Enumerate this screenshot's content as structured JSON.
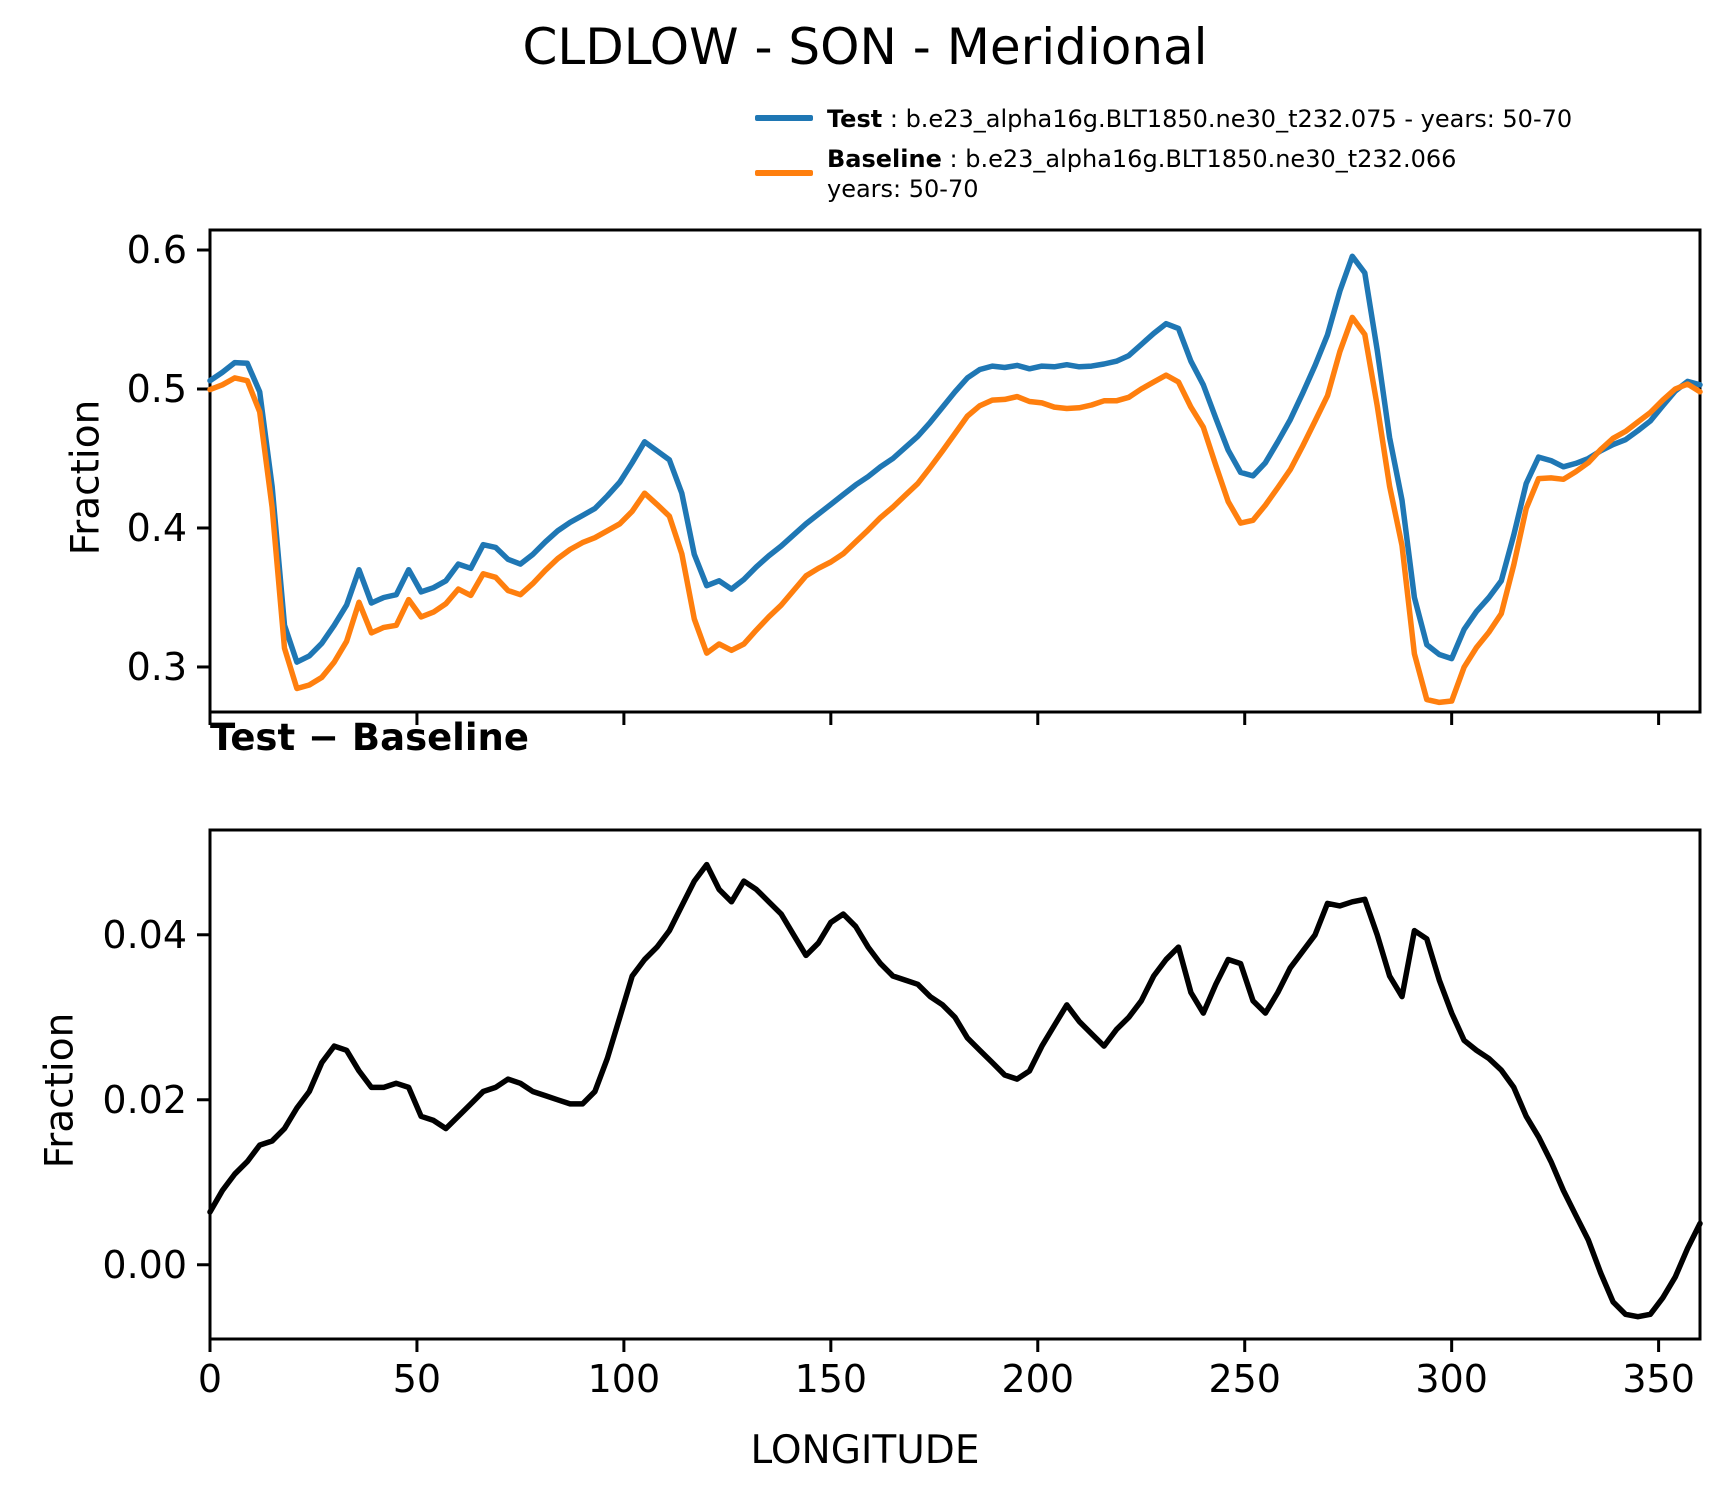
{
  "title": "CLDLOW - SON - Meridional",
  "legend": {
    "test_label": "Test",
    "test_desc": " : b.e23_alpha16g.BLT1850.ne30_t232.075 - years: 50-70",
    "baseline_label": "Baseline",
    "baseline_desc": " : b.e23_alpha16g.BLT1850.ne30_t232.066",
    "baseline_desc_line2": "years: 50-70"
  },
  "colors": {
    "test": "#1f77b4",
    "baseline": "#ff7f0e",
    "diff": "#000000",
    "axis": "#000000"
  },
  "chart_data": [
    {
      "type": "line",
      "title": "",
      "xlabel": "",
      "ylabel": "Fraction",
      "xlim": [
        0,
        360
      ],
      "ylim": [
        0.2676,
        0.6144
      ],
      "xticks": [
        0,
        50,
        100,
        150,
        200,
        250,
        300,
        350
      ],
      "xticklabels": [],
      "yticks": [
        0.3,
        0.4,
        0.5,
        0.6
      ],
      "yticklabels": [
        "0.3",
        "0.4",
        "0.5",
        "0.6"
      ],
      "grid": false,
      "legend_position": "top-right-above-axes",
      "x": [
        0,
        3,
        6,
        9,
        12,
        15,
        18,
        21,
        24,
        27,
        30,
        33,
        36,
        39,
        42,
        45,
        48,
        51,
        54,
        57,
        60,
        63,
        66,
        69,
        72,
        75,
        78,
        81,
        84,
        87,
        90,
        93,
        96,
        99,
        102,
        105,
        108,
        111,
        114,
        117,
        120,
        123,
        126,
        129,
        132,
        135,
        138,
        141,
        144,
        147,
        150,
        153,
        156,
        159,
        162,
        165,
        168,
        171,
        174,
        177,
        180,
        183,
        186,
        189,
        192,
        195,
        198,
        201,
        204,
        207,
        210,
        213,
        216,
        219,
        222,
        225,
        228,
        231,
        234,
        237,
        240,
        243,
        246,
        249,
        252,
        255,
        258,
        261,
        264,
        267,
        270,
        273,
        276,
        279,
        282,
        285,
        288,
        291,
        294,
        297,
        300,
        303,
        306,
        309,
        312,
        315,
        318,
        321,
        324,
        327,
        330,
        333,
        336,
        339,
        342,
        345,
        348,
        351,
        354,
        357,
        360
      ],
      "series": [
        {
          "name": "Test",
          "values": [
            0.506,
            0.512,
            0.519,
            0.5185,
            0.498,
            0.43,
            0.33,
            0.3035,
            0.308,
            0.317,
            0.33,
            0.3445,
            0.37,
            0.346,
            0.35,
            0.352,
            0.37,
            0.354,
            0.357,
            0.362,
            0.374,
            0.371,
            0.388,
            0.386,
            0.3775,
            0.374,
            0.381,
            0.39,
            0.398,
            0.404,
            0.409,
            0.414,
            0.423,
            0.433,
            0.447,
            0.462,
            0.4555,
            0.449,
            0.425,
            0.381,
            0.3585,
            0.362,
            0.356,
            0.363,
            0.372,
            0.38,
            0.387,
            0.395,
            0.403,
            0.41,
            0.417,
            0.424,
            0.431,
            0.437,
            0.444,
            0.45,
            0.458,
            0.466,
            0.476,
            0.487,
            0.498,
            0.508,
            0.514,
            0.5165,
            0.5155,
            0.517,
            0.5145,
            0.5165,
            0.516,
            0.5175,
            0.516,
            0.5165,
            0.518,
            0.52,
            0.524,
            0.532,
            0.54,
            0.547,
            0.5435,
            0.52,
            0.503,
            0.479,
            0.456,
            0.44,
            0.4375,
            0.447,
            0.462,
            0.478,
            0.497,
            0.517,
            0.539,
            0.5705,
            0.5955,
            0.5835,
            0.528,
            0.465,
            0.42,
            0.35,
            0.316,
            0.309,
            0.306,
            0.327,
            0.34,
            0.35,
            0.362,
            0.395,
            0.432,
            0.451,
            0.4485,
            0.444,
            0.4465,
            0.45,
            0.4555,
            0.46,
            0.4635,
            0.47,
            0.477,
            0.488,
            0.4985,
            0.5055,
            0.503
          ]
        },
        {
          "name": "Baseline",
          "values": [
            0.4996,
            0.503,
            0.508,
            0.506,
            0.4835,
            0.415,
            0.3135,
            0.2845,
            0.287,
            0.2925,
            0.3035,
            0.3185,
            0.3465,
            0.3245,
            0.3285,
            0.33,
            0.3485,
            0.336,
            0.3395,
            0.3455,
            0.356,
            0.3515,
            0.367,
            0.3645,
            0.355,
            0.352,
            0.36,
            0.3695,
            0.378,
            0.3845,
            0.3895,
            0.393,
            0.398,
            0.403,
            0.412,
            0.425,
            0.417,
            0.4085,
            0.3815,
            0.3345,
            0.31,
            0.3165,
            0.312,
            0.3165,
            0.3265,
            0.336,
            0.3445,
            0.355,
            0.3655,
            0.371,
            0.3755,
            0.3815,
            0.39,
            0.3985,
            0.4075,
            0.415,
            0.4235,
            0.432,
            0.4435,
            0.4555,
            0.468,
            0.4805,
            0.488,
            0.492,
            0.4925,
            0.4945,
            0.491,
            0.49,
            0.487,
            0.486,
            0.4865,
            0.4885,
            0.4915,
            0.4915,
            0.494,
            0.5,
            0.505,
            0.51,
            0.505,
            0.487,
            0.4725,
            0.445,
            0.419,
            0.4035,
            0.4055,
            0.4165,
            0.429,
            0.442,
            0.459,
            0.477,
            0.4952,
            0.527,
            0.5515,
            0.5392,
            0.488,
            0.43,
            0.3875,
            0.3095,
            0.2765,
            0.2745,
            0.2755,
            0.2998,
            0.314,
            0.325,
            0.3384,
            0.3735,
            0.414,
            0.4355,
            0.436,
            0.435,
            0.4405,
            0.447,
            0.4565,
            0.4645,
            0.4695,
            0.4763,
            0.483,
            0.492,
            0.5,
            0.5035,
            0.498
          ]
        }
      ]
    },
    {
      "type": "line",
      "title": "Test − Baseline",
      "xlabel": "LONGITUDE",
      "ylabel": "Fraction",
      "xlim": [
        0,
        360
      ],
      "ylim": [
        -0.009,
        0.0527
      ],
      "xticks": [
        0,
        50,
        100,
        150,
        200,
        250,
        300,
        350
      ],
      "xticklabels": [
        "0",
        "50",
        "100",
        "150",
        "200",
        "250",
        "300",
        "350"
      ],
      "yticks": [
        0.0,
        0.02,
        0.04
      ],
      "yticklabels": [
        "0.00",
        "0.02",
        "0.04"
      ],
      "grid": false,
      "x": [
        0,
        3,
        6,
        9,
        12,
        15,
        18,
        21,
        24,
        27,
        30,
        33,
        36,
        39,
        42,
        45,
        48,
        51,
        54,
        57,
        60,
        63,
        66,
        69,
        72,
        75,
        78,
        81,
        84,
        87,
        90,
        93,
        96,
        99,
        102,
        105,
        108,
        111,
        114,
        117,
        120,
        123,
        126,
        129,
        132,
        135,
        138,
        141,
        144,
        147,
        150,
        153,
        156,
        159,
        162,
        165,
        168,
        171,
        174,
        177,
        180,
        183,
        186,
        189,
        192,
        195,
        198,
        201,
        204,
        207,
        210,
        213,
        216,
        219,
        222,
        225,
        228,
        231,
        234,
        237,
        240,
        243,
        246,
        249,
        252,
        255,
        258,
        261,
        264,
        267,
        270,
        273,
        276,
        279,
        282,
        285,
        288,
        291,
        294,
        297,
        300,
        303,
        306,
        309,
        312,
        315,
        318,
        321,
        324,
        327,
        330,
        333,
        336,
        339,
        342,
        345,
        348,
        351,
        354,
        357,
        360
      ],
      "series": [
        {
          "name": "Test minus Baseline",
          "values": [
            0.0064,
            0.009,
            0.011,
            0.0125,
            0.0145,
            0.015,
            0.0165,
            0.019,
            0.021,
            0.0245,
            0.0265,
            0.026,
            0.0235,
            0.0215,
            0.0215,
            0.022,
            0.0215,
            0.018,
            0.0175,
            0.0165,
            0.018,
            0.0195,
            0.021,
            0.0215,
            0.0225,
            0.022,
            0.021,
            0.0205,
            0.02,
            0.0195,
            0.0195,
            0.021,
            0.025,
            0.03,
            0.035,
            0.037,
            0.0385,
            0.0405,
            0.0435,
            0.0465,
            0.0485,
            0.0455,
            0.044,
            0.0465,
            0.0455,
            0.044,
            0.0425,
            0.04,
            0.0375,
            0.039,
            0.0415,
            0.0425,
            0.041,
            0.0385,
            0.0365,
            0.035,
            0.0345,
            0.034,
            0.0325,
            0.0315,
            0.03,
            0.0275,
            0.026,
            0.0245,
            0.023,
            0.0225,
            0.0235,
            0.0265,
            0.029,
            0.0315,
            0.0295,
            0.028,
            0.0265,
            0.0285,
            0.03,
            0.032,
            0.035,
            0.037,
            0.0385,
            0.033,
            0.0305,
            0.034,
            0.037,
            0.0365,
            0.032,
            0.0305,
            0.033,
            0.036,
            0.038,
            0.04,
            0.0438,
            0.0435,
            0.044,
            0.0443,
            0.04,
            0.035,
            0.0325,
            0.0405,
            0.0395,
            0.0345,
            0.0305,
            0.0272,
            0.026,
            0.025,
            0.0236,
            0.0215,
            0.018,
            0.0155,
            0.0125,
            0.009,
            0.006,
            0.003,
            -0.001,
            -0.0045,
            -0.006,
            -0.0063,
            -0.006,
            -0.004,
            -0.0015,
            0.002,
            0.005
          ]
        }
      ]
    }
  ]
}
